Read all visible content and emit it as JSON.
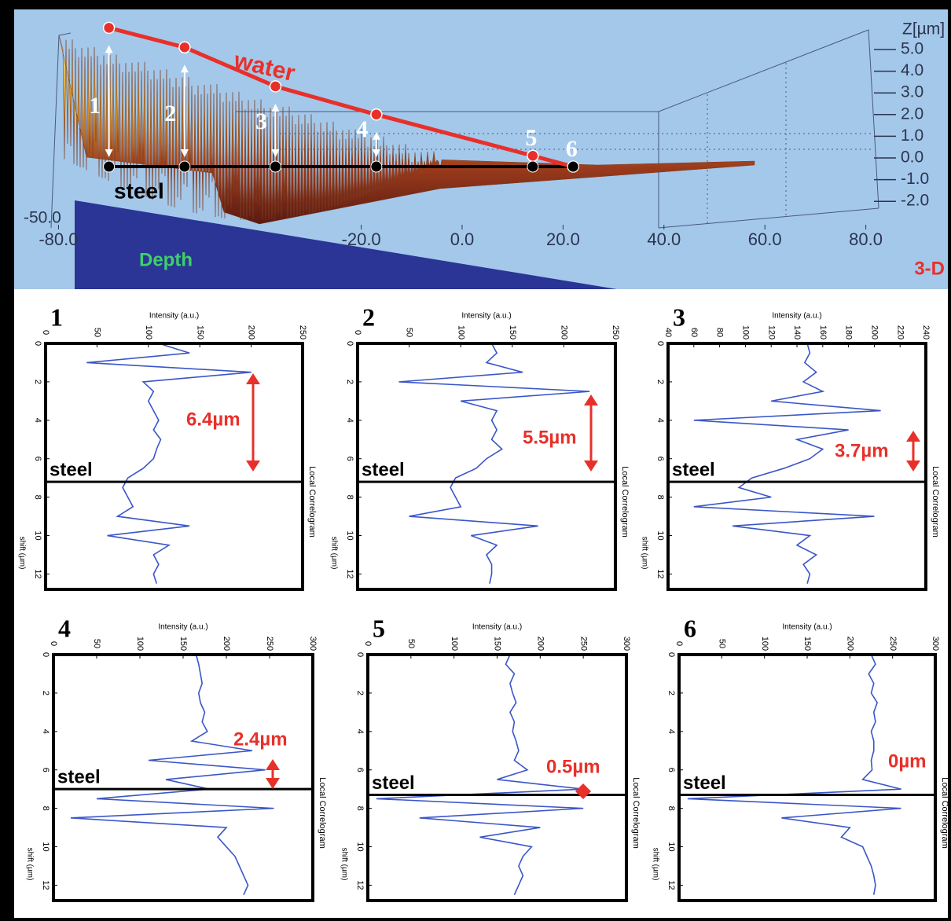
{
  "chart_data": [
    {
      "type": "profile",
      "labels": {
        "water": "water",
        "steel": "steel",
        "depth": "Depth",
        "mode": "3-D",
        "z_axis": "Z[µm]",
        "partial": "-50.0"
      },
      "xlim": [
        -80,
        80
      ],
      "xticks": [
        {
          "value": -80,
          "label": "-80.0"
        },
        {
          "value": -20,
          "label": "-20.0"
        },
        {
          "value": 0,
          "label": "0.0"
        },
        {
          "value": 20,
          "label": "20.0"
        },
        {
          "value": 40,
          "label": "40.0"
        },
        {
          "value": 60,
          "label": "60.0"
        },
        {
          "value": 80,
          "label": "80.0"
        }
      ],
      "yticks": [
        {
          "value": 5,
          "label": "5.0"
        },
        {
          "value": 4,
          "label": "4.0"
        },
        {
          "value": 3,
          "label": "3.0"
        },
        {
          "value": 2,
          "label": "2.0"
        },
        {
          "value": 1,
          "label": "1.0"
        },
        {
          "value": 0,
          "label": "0.0"
        },
        {
          "value": -1,
          "label": "-1.0"
        },
        {
          "value": -2,
          "label": "-2.0"
        }
      ],
      "steel_level": -0.4,
      "points": [
        {
          "label": "1",
          "x": -70
        },
        {
          "label": "2",
          "x": -55
        },
        {
          "label": "3",
          "x": -37
        },
        {
          "label": "4",
          "x": -17
        },
        {
          "label": "5",
          "x": 14
        },
        {
          "label": "6",
          "x": 22
        }
      ]
    },
    {
      "type": "correlogram",
      "label": "1",
      "x_title": "Intensity (a.u.)",
      "y_title": "shift (µm)",
      "right_title": "Local Correlogram",
      "xlim": [
        0,
        250
      ],
      "xticks": [
        0,
        50,
        100,
        150,
        200,
        250
      ],
      "ylim": [
        0,
        12.8
      ],
      "yticks": [
        0,
        2,
        4,
        6,
        8,
        10,
        12
      ],
      "steel": {
        "label": "steel",
        "shift": 7.2
      },
      "annotation": {
        "value": 6.4,
        "label": "6.4µm"
      },
      "color": "#3a56c8",
      "x": [
        0,
        0.5,
        1,
        1.5,
        2,
        2.5,
        3,
        3.5,
        4,
        4.5,
        5,
        5.5,
        6,
        6.5,
        7,
        7.5,
        8,
        8.5,
        9,
        9.5,
        10,
        10.5,
        11,
        11.5,
        12,
        12.5
      ],
      "values": [
        110,
        140,
        40,
        200,
        95,
        105,
        100,
        105,
        110,
        105,
        112,
        108,
        105,
        95,
        80,
        75,
        80,
        85,
        70,
        140,
        60,
        120,
        105,
        110,
        105,
        108
      ]
    },
    {
      "type": "correlogram",
      "label": "2",
      "x_title": "Intensity (a.u.)",
      "y_title": "shift (µm)",
      "right_title": "Local Correlogram",
      "xlim": [
        0,
        250
      ],
      "xticks": [
        0,
        50,
        100,
        150,
        200,
        250
      ],
      "ylim": [
        0,
        12.8
      ],
      "yticks": [
        0,
        2,
        4,
        6,
        8,
        10,
        12
      ],
      "steel": {
        "label": "steel",
        "shift": 7.2
      },
      "annotation": {
        "value": 5.5,
        "label": "5.5µm"
      },
      "color": "#3a56c8",
      "x": [
        0,
        0.5,
        1,
        1.5,
        2,
        2.5,
        3,
        3.5,
        4,
        4.5,
        5,
        5.5,
        6,
        6.5,
        7,
        7.5,
        8,
        8.5,
        9,
        9.5,
        10,
        10.5,
        11,
        11.5,
        12,
        12.5
      ],
      "values": [
        130,
        135,
        125,
        160,
        40,
        225,
        100,
        135,
        130,
        135,
        130,
        140,
        125,
        115,
        95,
        90,
        95,
        100,
        50,
        175,
        110,
        135,
        125,
        130,
        130,
        128
      ]
    },
    {
      "type": "correlogram",
      "label": "3",
      "x_title": "Intensity (a.u.)",
      "y_title": "shift (µm)",
      "right_title": "Local Correlogram",
      "xlim": [
        40,
        240
      ],
      "xticks": [
        40,
        60,
        80,
        100,
        120,
        140,
        160,
        180,
        200,
        220,
        240
      ],
      "ylim": [
        0,
        12.8
      ],
      "yticks": [
        0,
        2,
        4,
        6,
        8,
        10,
        12
      ],
      "steel": {
        "label": "steel",
        "shift": 7.2
      },
      "annotation": {
        "value": 3.7,
        "label": "3.7µm"
      },
      "color": "#3a56c8",
      "x": [
        0,
        0.5,
        1,
        1.5,
        2,
        2.5,
        3,
        3.5,
        4,
        4.5,
        5,
        5.5,
        6,
        6.5,
        7,
        7.5,
        8,
        8.5,
        9,
        9.5,
        10,
        10.5,
        11,
        11.5,
        12,
        12.5
      ],
      "values": [
        148,
        150,
        146,
        155,
        145,
        160,
        120,
        205,
        60,
        180,
        140,
        160,
        150,
        130,
        105,
        95,
        120,
        60,
        200,
        90,
        150,
        140,
        155,
        145,
        150,
        148
      ]
    },
    {
      "type": "correlogram",
      "label": "4",
      "x_title": "Intensity (a.u.)",
      "y_title": "shift (µm)",
      "right_title": "Local Correlogram",
      "xlim": [
        0,
        300
      ],
      "xticks": [
        0,
        50,
        100,
        150,
        200,
        250,
        300
      ],
      "ylim": [
        0,
        12.8
      ],
      "yticks": [
        0,
        2,
        4,
        6,
        8,
        10,
        12
      ],
      "steel": {
        "label": "steel",
        "shift": 7.0
      },
      "annotation": {
        "value": 2.4,
        "label": "2.4µm"
      },
      "color": "#3a56c8",
      "x": [
        0,
        0.5,
        1,
        1.5,
        2,
        2.5,
        3,
        3.5,
        4,
        4.5,
        5,
        5.5,
        6,
        6.5,
        7,
        7.5,
        8,
        8.5,
        9,
        9.5,
        10,
        10.5,
        11,
        11.5,
        12,
        12.5
      ],
      "values": [
        165,
        168,
        170,
        172,
        168,
        170,
        175,
        172,
        178,
        160,
        230,
        110,
        245,
        130,
        180,
        50,
        255,
        20,
        200,
        190,
        200,
        210,
        215,
        220,
        225,
        220
      ]
    },
    {
      "type": "correlogram",
      "label": "5",
      "x_title": "Intensity (a.u.)",
      "y_title": "shift (µm)",
      "right_title": "Local Correlogram",
      "xlim": [
        0,
        300
      ],
      "xticks": [
        0,
        50,
        100,
        150,
        200,
        250,
        300
      ],
      "ylim": [
        0,
        12.8
      ],
      "yticks": [
        0,
        2,
        4,
        6,
        8,
        10,
        12
      ],
      "steel": {
        "label": "steel",
        "shift": 7.3
      },
      "annotation": {
        "value": 0.5,
        "label": "0.5µm"
      },
      "color": "#3a56c8",
      "x": [
        0,
        0.5,
        1,
        1.5,
        2,
        2.5,
        3,
        3.5,
        4,
        4.5,
        5,
        5.5,
        6,
        6.5,
        7,
        7.5,
        8,
        8.5,
        9,
        9.5,
        10,
        10.5,
        11,
        11.5,
        12,
        12.5
      ],
      "values": [
        165,
        160,
        170,
        165,
        168,
        172,
        165,
        170,
        168,
        172,
        175,
        170,
        185,
        150,
        250,
        10,
        250,
        60,
        200,
        130,
        190,
        180,
        175,
        180,
        175,
        170
      ]
    },
    {
      "type": "correlogram",
      "label": "6",
      "x_title": "Intensity (a.u.)",
      "y_title": "shift (µm)",
      "right_title": "Local Correlogram",
      "xlim": [
        0,
        300
      ],
      "xticks": [
        0,
        50,
        100,
        150,
        200,
        250,
        300
      ],
      "ylim": [
        0,
        12.8
      ],
      "yticks": [
        0,
        2,
        4,
        6,
        8,
        10,
        12
      ],
      "steel": {
        "label": "steel",
        "shift": 7.3
      },
      "annotation": {
        "value": 0,
        "label": "0µm"
      },
      "color": "#3a56c8",
      "x": [
        0,
        0.5,
        1,
        1.5,
        2,
        2.5,
        3,
        3.5,
        4,
        4.5,
        5,
        5.5,
        6,
        6.5,
        7,
        7.5,
        8,
        8.5,
        9,
        9.5,
        10,
        10.5,
        11,
        11.5,
        12,
        12.5
      ],
      "values": [
        225,
        230,
        222,
        228,
        225,
        232,
        228,
        230,
        225,
        228,
        228,
        225,
        226,
        215,
        260,
        10,
        260,
        120,
        200,
        190,
        215,
        220,
        225,
        228,
        230,
        228
      ]
    }
  ]
}
